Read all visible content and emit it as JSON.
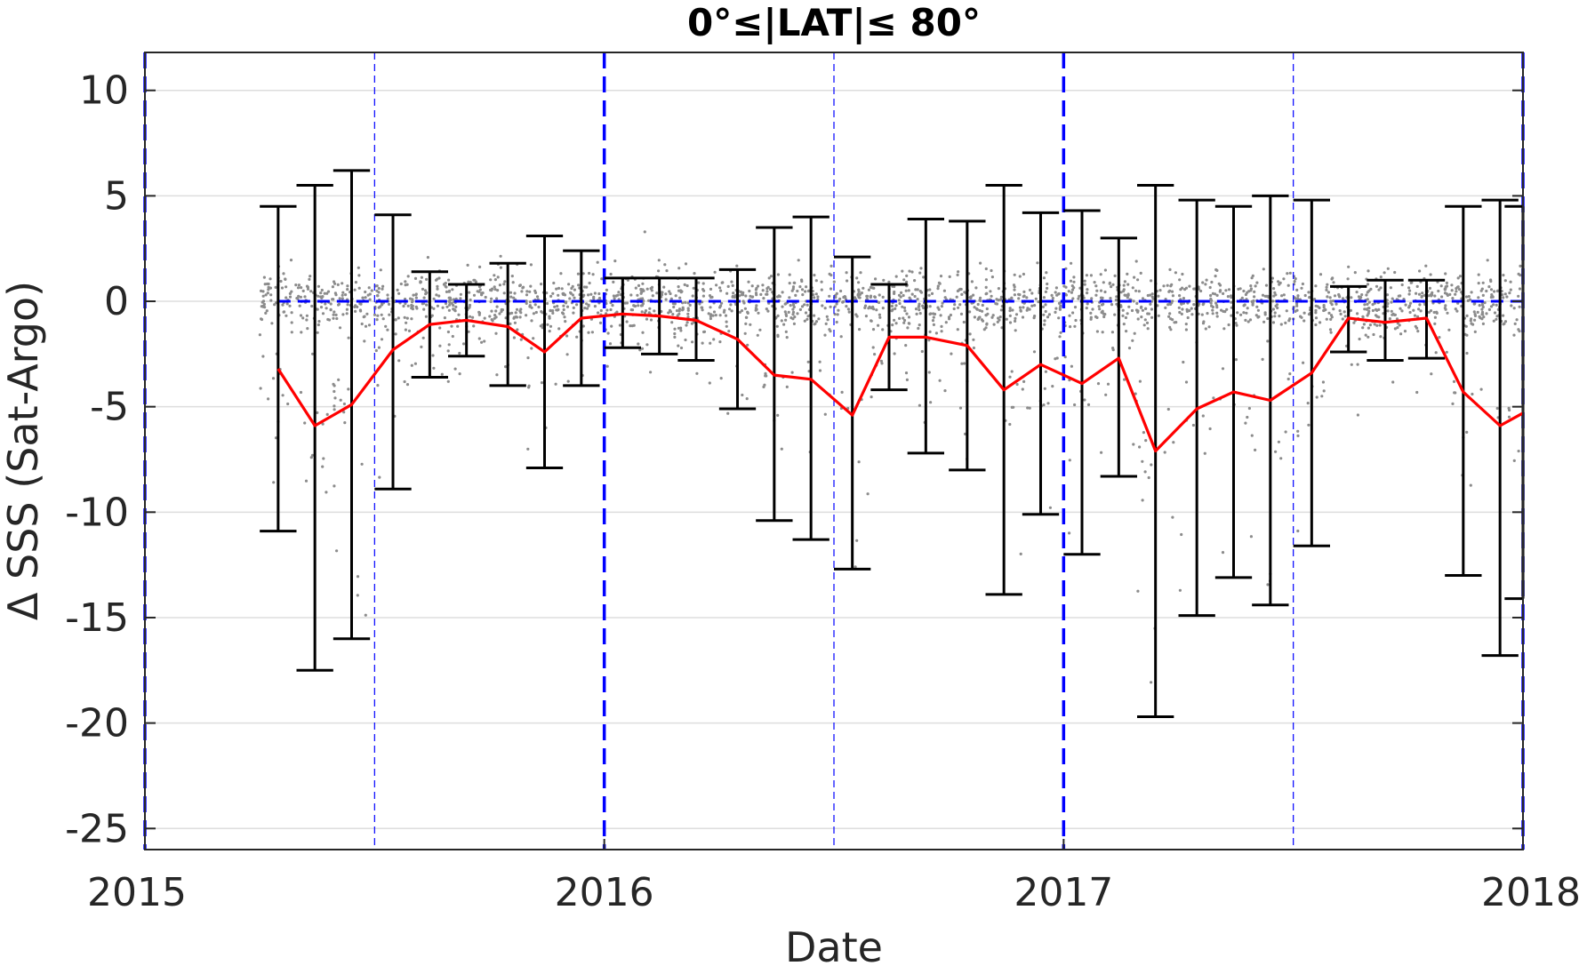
{
  "chart_data": {
    "type": "scatter",
    "title": "0°≤|LAT|≤ 80°",
    "xlabel": "Date",
    "ylabel": "Δ SSS (Sat-Argo)",
    "xlim": [
      2015.0,
      2018.0
    ],
    "ylim": [
      -26,
      11.8
    ],
    "x_ticks": [
      2015,
      2016,
      2017,
      2018
    ],
    "x_tick_labels": [
      "2015",
      "2016",
      "2017",
      "2018"
    ],
    "y_ticks": [
      10,
      5,
      0,
      -5,
      -10,
      -15,
      -20,
      -25
    ],
    "y_tick_labels": [
      "10",
      "5",
      "0",
      "-5",
      "-10",
      "-15",
      "-20",
      "-25"
    ],
    "grid": true,
    "colors": {
      "scatter": "#8c8c8c",
      "mean_line": "#ff0000",
      "error_bars": "#000000",
      "reference_lines": "#0000ff",
      "grid": "#dddddd"
    },
    "reference_lines": {
      "zero_line_y": 0,
      "year_boundaries_x": [
        2015.0,
        2016.0,
        2017.0,
        2018.0
      ],
      "half_year_x": [
        2015.5,
        2016.5,
        2017.5
      ]
    },
    "series": [
      {
        "kind": "mean_with_range",
        "x": [
          2015.29,
          2015.37,
          2015.45,
          2015.54,
          2015.62,
          2015.7,
          2015.79,
          2015.87,
          2015.95,
          2016.04,
          2016.12,
          2016.2,
          2016.29,
          2016.37,
          2016.45,
          2016.54,
          2016.62,
          2016.7,
          2016.79,
          2016.87,
          2016.95,
          2017.04,
          2017.12,
          2017.2,
          2017.29,
          2017.37,
          2017.45,
          2017.54,
          2017.62,
          2017.7,
          2017.79,
          2017.87,
          2017.95,
          2018.0
        ],
        "mean": [
          -3.2,
          -5.9,
          -4.9,
          -2.3,
          -1.1,
          -0.9,
          -1.2,
          -2.4,
          -0.8,
          -0.6,
          -0.7,
          -0.9,
          -1.8,
          -3.5,
          -3.7,
          -5.4,
          -1.7,
          -1.7,
          -2.1,
          -4.2,
          -3.0,
          -3.9,
          -2.7,
          -7.1,
          -5.1,
          -4.3,
          -4.7,
          -3.4,
          -0.8,
          -1.0,
          -0.8,
          -4.3,
          -5.9,
          -5.3
        ],
        "upper": [
          4.5,
          5.5,
          6.2,
          4.1,
          1.4,
          0.8,
          1.8,
          3.1,
          2.4,
          1.1,
          1.1,
          1.1,
          1.5,
          3.5,
          4.0,
          2.1,
          0.8,
          3.9,
          3.8,
          5.5,
          4.2,
          4.3,
          3.0,
          5.5,
          4.8,
          4.5,
          5.0,
          4.8,
          0.7,
          1.0,
          1.0,
          4.5,
          4.8,
          4.5
        ],
        "lower": [
          -10.9,
          -17.5,
          -16.0,
          -8.9,
          -3.6,
          -2.6,
          -4.0,
          -7.9,
          -4.0,
          -2.2,
          -2.5,
          -2.8,
          -5.1,
          -10.4,
          -11.3,
          -12.7,
          -4.2,
          -7.2,
          -8.0,
          -13.9,
          -10.1,
          -12.0,
          -8.3,
          -19.7,
          -14.9,
          -13.1,
          -14.4,
          -11.6,
          -2.4,
          -2.8,
          -2.7,
          -13.0,
          -16.8,
          -14.1
        ]
      }
    ]
  }
}
